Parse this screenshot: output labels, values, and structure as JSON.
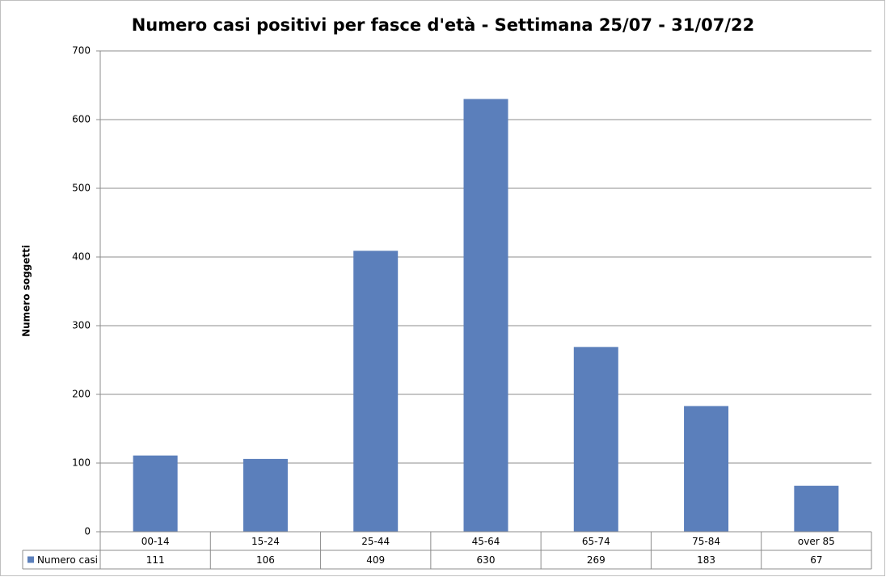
{
  "chart_data": {
    "type": "bar",
    "title": "Numero casi positivi per fasce d'età - Settimana 25/07 - 31/07/22",
    "y_label": "Numero soggetti",
    "categories": [
      "00-14",
      "15-24",
      "25-44",
      "45-64",
      "65-74",
      "75-84",
      "over 85"
    ],
    "series": [
      {
        "name": "Numero casi",
        "color": "#5b7fbb",
        "values": [
          111,
          106,
          409,
          630,
          269,
          183,
          67
        ]
      }
    ],
    "ylim": [
      0,
      700
    ],
    "yticks": [
      0,
      100,
      200,
      300,
      400,
      500,
      600,
      700
    ],
    "grid": true,
    "data_table": true
  }
}
